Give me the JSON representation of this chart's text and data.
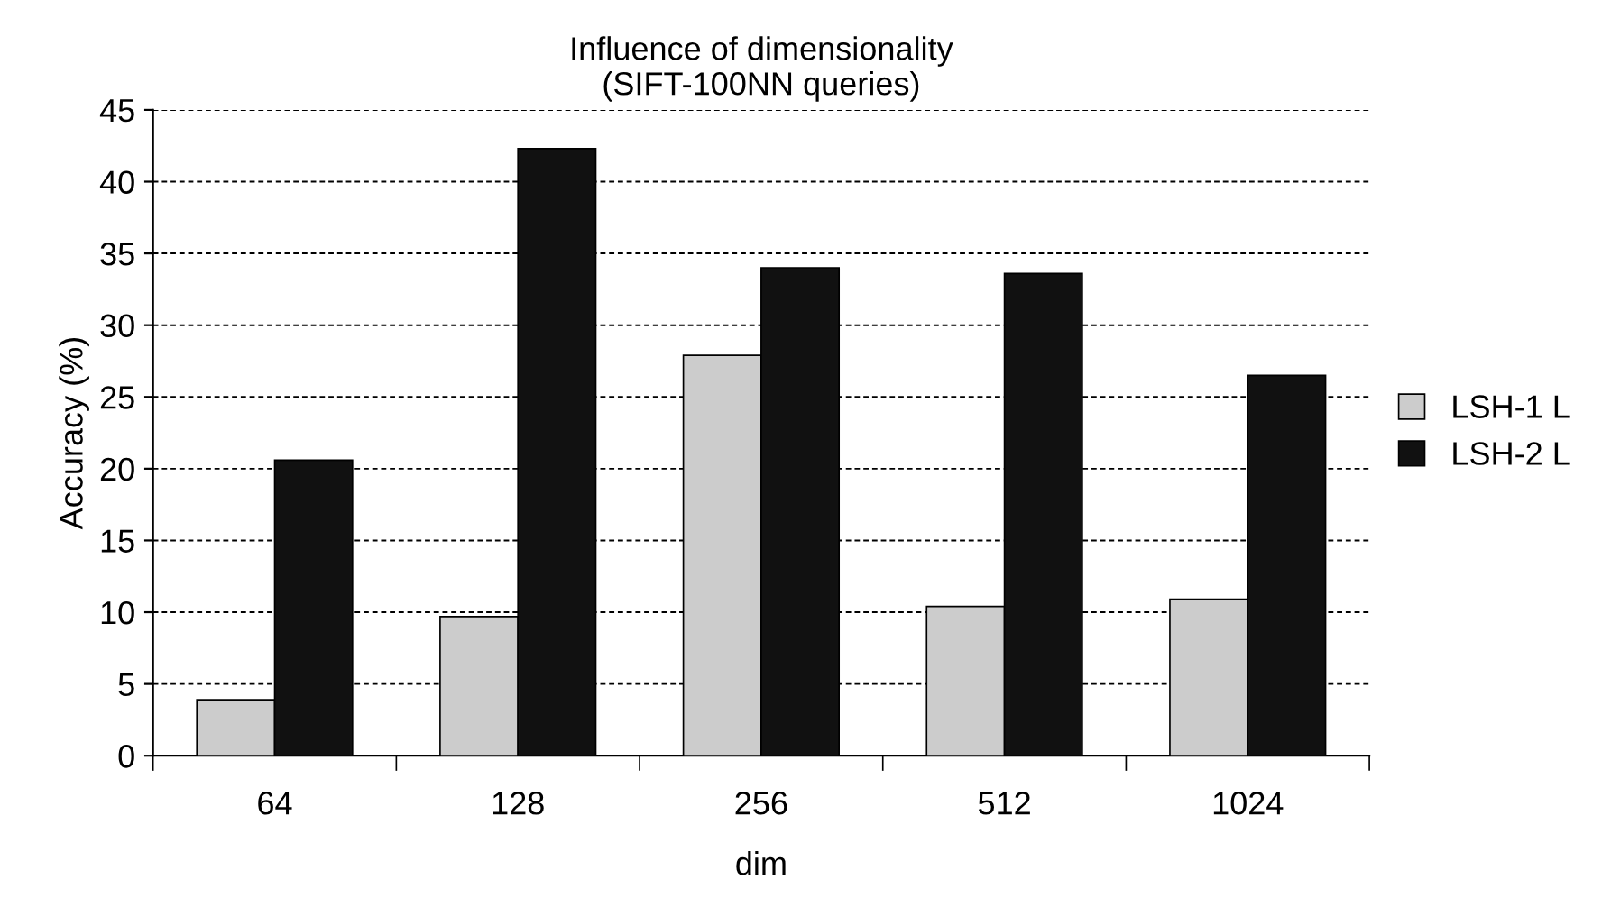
{
  "chart_data": {
    "type": "bar",
    "title": "Influence of dimensionality\n(SIFT-100NN queries)",
    "xlabel": "dim",
    "ylabel": "Accuracy (%)",
    "categories": [
      "64",
      "128",
      "256",
      "512",
      "1024"
    ],
    "series": [
      {
        "name": "LSH-1 L",
        "color": "#cccccc",
        "values": [
          3.9,
          9.7,
          27.9,
          10.4,
          10.9
        ]
      },
      {
        "name": "LSH-2 L",
        "color": "#111111",
        "values": [
          20.6,
          42.3,
          34.0,
          33.6,
          26.5
        ]
      }
    ],
    "ylim": [
      0,
      45
    ],
    "yticks": [
      0,
      5,
      10,
      15,
      20,
      25,
      30,
      35,
      40,
      45
    ],
    "grid": "y",
    "legend": "right"
  }
}
